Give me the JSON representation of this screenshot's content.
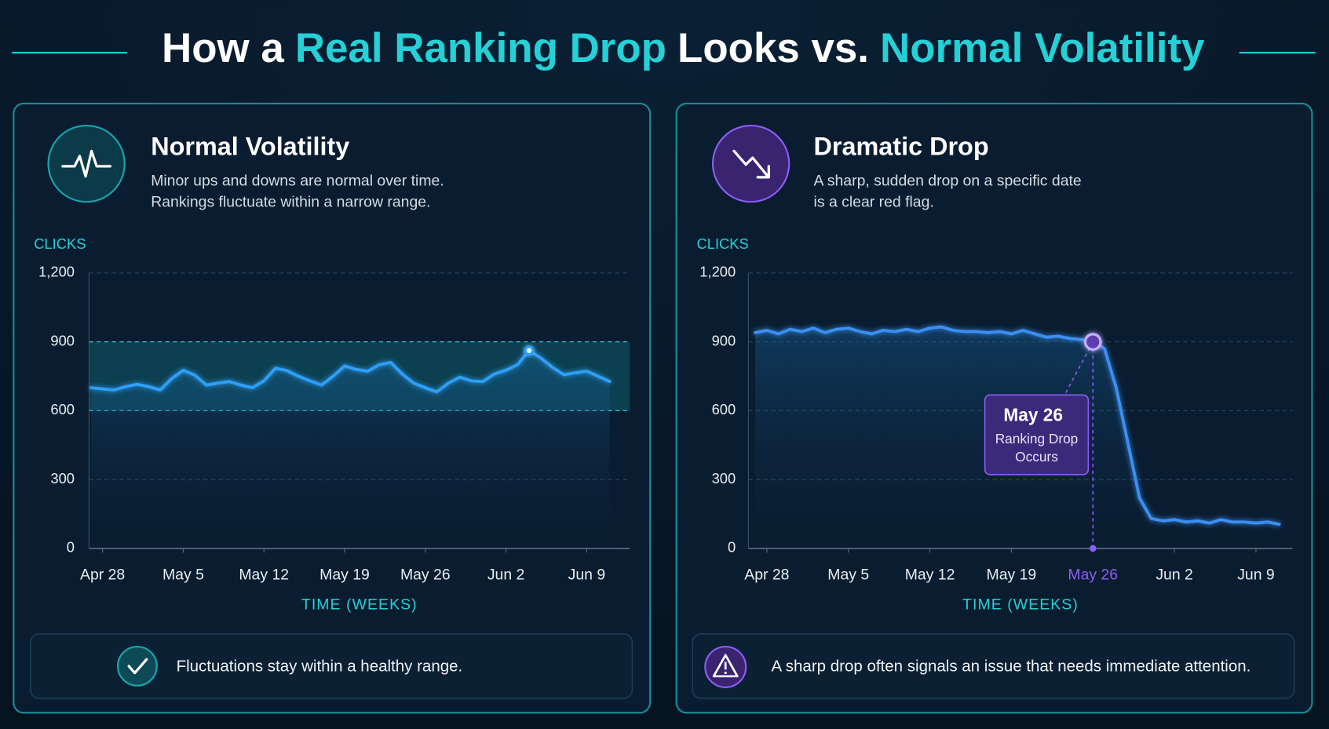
{
  "header": {
    "title": [
      {
        "text": "How a",
        "color": "#ffffff"
      },
      {
        "text": "Real Ranking Drop",
        "color": "#25d0d6"
      },
      {
        "text": "Looks vs.",
        "color": "#ffffff"
      },
      {
        "text": "Normal Volatility",
        "color": "#25d0d6"
      }
    ]
  },
  "chart_data": [
    {
      "type": "line",
      "title": "Normal Volatility",
      "description": [
        "Minor ups and downs are normal over time.",
        "Rankings fluctuate within a narrow range."
      ],
      "ylabel": "CLICKS",
      "xlabel": "TIME (WEEKS)",
      "categories": [
        null,
        "Apr 28",
        null,
        null,
        null,
        null,
        null,
        null,
        "May 5",
        null,
        null,
        null,
        null,
        null,
        null,
        "May 12",
        null,
        null,
        null,
        null,
        null,
        null,
        "May 19",
        null,
        null,
        null,
        null,
        null,
        null,
        "May 26",
        null,
        null,
        null,
        null,
        null,
        null,
        "Jun 2",
        null,
        null,
        null,
        null,
        null,
        null,
        "Jun 9",
        null,
        null
      ],
      "series": [
        {
          "color": "#2f9ff7",
          "values": [
            700,
            695,
            690,
            705,
            715,
            705,
            690,
            740,
            776,
            755,
            712,
            720,
            727,
            712,
            700,
            730,
            785,
            775,
            750,
            730,
            712,
            750,
            795,
            780,
            772,
            800,
            810,
            760,
            720,
            700,
            682,
            720,
            746,
            730,
            727,
            760,
            776,
            800,
            862,
            830,
            790,
            757,
            765,
            772,
            750,
            727
          ]
        }
      ],
      "ylim": [
        0,
        1200
      ],
      "yticks": [
        0,
        300,
        600,
        900,
        {
          "value": 1200,
          "label": "1,200"
        }
      ],
      "grid": true,
      "band": [
        600,
        900
      ],
      "note": "Fluctuations stay within a healthy range.",
      "accent": "#1aa3ad"
    },
    {
      "type": "line",
      "title": "Dramatic Drop",
      "description": [
        "A sharp, sudden drop on a specific date",
        "is a clear red flag."
      ],
      "ylabel": "CLICKS",
      "xlabel": "TIME (WEEKS)",
      "categories": [
        null,
        "Apr 28",
        null,
        null,
        null,
        null,
        null,
        null,
        "May 5",
        null,
        null,
        null,
        null,
        null,
        null,
        "May 12",
        null,
        null,
        null,
        null,
        null,
        null,
        "May 19",
        null,
        null,
        null,
        null,
        null,
        null,
        "May 26",
        null,
        null,
        null,
        null,
        null,
        null,
        "Jun 2",
        null,
        null,
        null,
        null,
        null,
        null,
        "Jun 9",
        null,
        null
      ],
      "series": [
        {
          "color": "#3b8ff2",
          "values": [
            940,
            950,
            935,
            955,
            945,
            960,
            940,
            955,
            960,
            945,
            935,
            950,
            945,
            955,
            945,
            960,
            965,
            950,
            945,
            945,
            940,
            945,
            935,
            950,
            935,
            920,
            925,
            915,
            910,
            900,
            870,
            700,
            460,
            220,
            130,
            120,
            125,
            115,
            120,
            110,
            125,
            115,
            115,
            110,
            115,
            105
          ]
        }
      ],
      "ylim": [
        0,
        1200
      ],
      "yticks": [
        0,
        300,
        600,
        900,
        {
          "value": 1200,
          "label": "1,200"
        }
      ],
      "grid": true,
      "annotation": {
        "label": "May 26",
        "text": [
          "Ranking Drop",
          "Occurs"
        ],
        "color": "#8b5cf6"
      },
      "note": "A sharp drop often signals an issue that needs immediate attention.",
      "accent": "#8b5cf6"
    }
  ]
}
